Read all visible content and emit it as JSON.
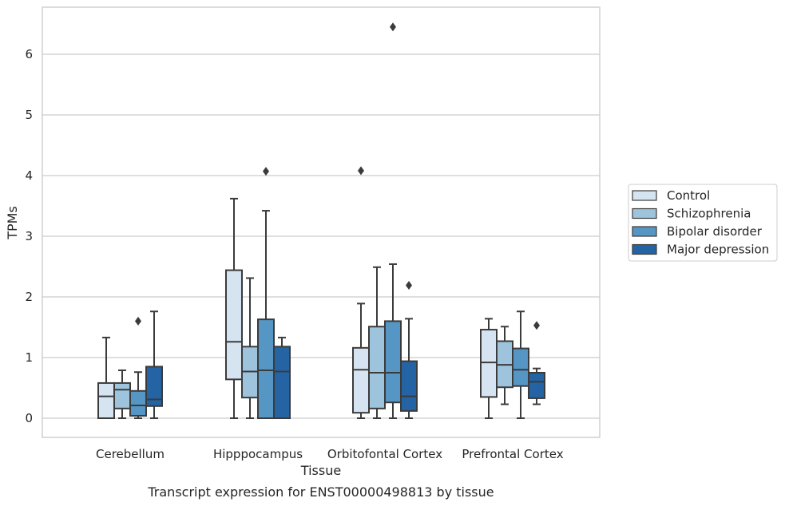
{
  "chart_data": {
    "type": "box",
    "caption": "Transcript expression for ENST00000498813 by tissue",
    "xlabel": "Tissue",
    "ylabel": "TPMs",
    "ylim": [
      -0.32,
      6.8
    ],
    "yticks": [
      0,
      1,
      2,
      3,
      4,
      5,
      6
    ],
    "grid": "horizontal",
    "legend_position": "right",
    "categories": [
      "Cerebellum",
      "Hipppocampus",
      "Orbitofontal Cortex",
      "Prefrontal Cortex"
    ],
    "series": [
      {
        "name": "Control",
        "color": "#d6e4f1",
        "boxes": [
          {
            "whislo": 0.0,
            "q1": 0.0,
            "med": 0.36,
            "q3": 0.58,
            "whishi": 1.33,
            "fliers": []
          },
          {
            "whislo": 0.0,
            "q1": 0.64,
            "med": 1.26,
            "q3": 2.44,
            "whishi": 3.62,
            "fliers": []
          },
          {
            "whislo": 0.0,
            "q1": 0.09,
            "med": 0.8,
            "q3": 1.16,
            "whishi": 1.89,
            "fliers": [
              4.08
            ]
          },
          {
            "whislo": 0.0,
            "q1": 0.35,
            "med": 0.92,
            "q3": 1.46,
            "whishi": 1.64,
            "fliers": []
          }
        ]
      },
      {
        "name": "Schizophrenia",
        "color": "#9dc3dd",
        "boxes": [
          {
            "whislo": 0.0,
            "q1": 0.16,
            "med": 0.47,
            "q3": 0.58,
            "whishi": 0.79,
            "fliers": []
          },
          {
            "whislo": 0.0,
            "q1": 0.34,
            "med": 0.77,
            "q3": 1.18,
            "whishi": 2.31,
            "fliers": []
          },
          {
            "whislo": 0.0,
            "q1": 0.16,
            "med": 0.75,
            "q3": 1.51,
            "whishi": 2.49,
            "fliers": []
          },
          {
            "whislo": 0.23,
            "q1": 0.51,
            "med": 0.88,
            "q3": 1.27,
            "whishi": 1.51,
            "fliers": []
          }
        ]
      },
      {
        "name": "Bipolar disorder",
        "color": "#5596c4",
        "boxes": [
          {
            "whislo": 0.0,
            "q1": 0.04,
            "med": 0.21,
            "q3": 0.45,
            "whishi": 0.76,
            "fliers": [
              1.6
            ]
          },
          {
            "whislo": 0.0,
            "q1": 0.0,
            "med": 0.79,
            "q3": 1.63,
            "whishi": 3.42,
            "fliers": [
              4.07
            ]
          },
          {
            "whislo": 0.0,
            "q1": 0.26,
            "med": 0.75,
            "q3": 1.6,
            "whishi": 2.54,
            "fliers": [
              6.45
            ]
          },
          {
            "whislo": 0.0,
            "q1": 0.53,
            "med": 0.8,
            "q3": 1.15,
            "whishi": 1.76,
            "fliers": []
          }
        ]
      },
      {
        "name": "Major depression",
        "color": "#2463a4",
        "boxes": [
          {
            "whislo": 0.0,
            "q1": 0.2,
            "med": 0.31,
            "q3": 0.85,
            "whishi": 1.76,
            "fliers": []
          },
          {
            "whislo": 0.0,
            "q1": 0.0,
            "med": 0.77,
            "q3": 1.18,
            "whishi": 1.33,
            "fliers": []
          },
          {
            "whislo": 0.0,
            "q1": 0.12,
            "med": 0.36,
            "q3": 0.94,
            "whishi": 1.64,
            "fliers": [
              2.19
            ]
          },
          {
            "whislo": 0.23,
            "q1": 0.33,
            "med": 0.6,
            "q3": 0.75,
            "whishi": 0.82,
            "fliers": [
              1.53
            ]
          }
        ]
      }
    ]
  }
}
